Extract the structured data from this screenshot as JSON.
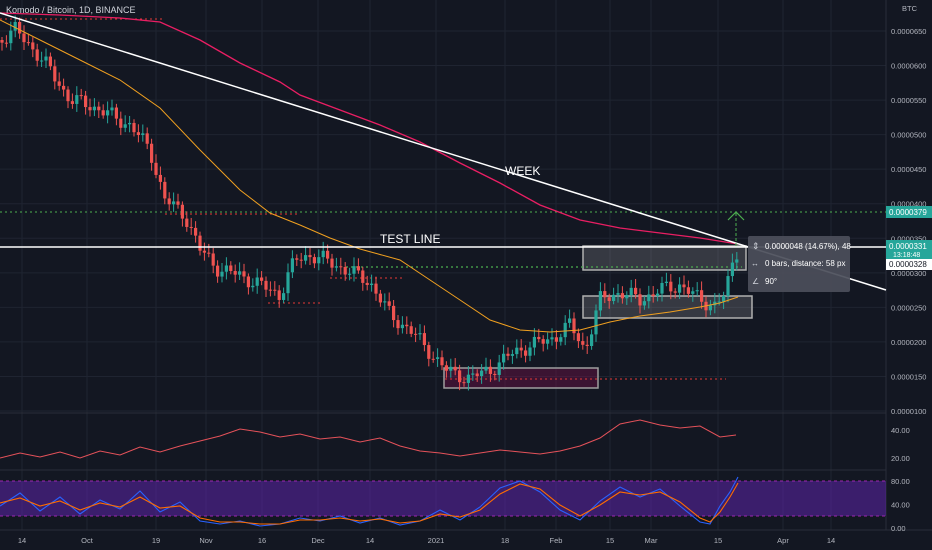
{
  "header": {
    "symbol": "Komodo / Bitcoin, 1D, BINANCE"
  },
  "price_axis": {
    "unit": "BTC",
    "ticks": [
      "0.0000650",
      "0.0000600",
      "0.0000550",
      "0.0000500",
      "0.0000450",
      "0.0000400",
      "0.0000350",
      "0.0000300",
      "0.0000250",
      "0.0000200",
      "0.0000150",
      "0.0000100"
    ],
    "tick_values": [
      6.5e-05,
      6e-05,
      5.5e-05,
      5e-05,
      4.5e-05,
      4e-05,
      3.5e-05,
      3e-05,
      2.5e-05,
      2e-05,
      1.5e-05,
      1e-05
    ],
    "badges": {
      "green": "0.0000379",
      "last": "0.0000331",
      "countdown": "13:18:48",
      "white": "0.0000328"
    }
  },
  "time_axis": {
    "labels": [
      "14",
      "Oct",
      "19",
      "Nov",
      "16",
      "Dec",
      "14",
      "2021",
      "18",
      "Feb",
      "15",
      "Mar",
      "15",
      "Apr",
      "14"
    ]
  },
  "rsi_axis": {
    "ticks": [
      "40.00",
      "20.00"
    ],
    "tick_values": [
      40,
      20
    ]
  },
  "stoch_axis": {
    "ticks": [
      "80.00",
      "40.00",
      "0.00"
    ],
    "tick_values": [
      80,
      40,
      0
    ]
  },
  "annotations": {
    "week": "WEEK",
    "test_line": "TEST LINE",
    "measure_price": "0.0000048 (14.67%), 48",
    "measure_bars": "0 bars, distance: 58 px",
    "measure_angle": "90°"
  },
  "colors": {
    "background": "#131722",
    "up": "#26a69a",
    "down": "#ef5350",
    "ma_long": "#e91e63",
    "ma_short": "#f0a020",
    "trend_line": "#ffffff",
    "green_dotted": "#4caf50",
    "red_dotted": "#e53935",
    "rsi": "#e5525a",
    "stoch_k": "#2962ff",
    "stoch_d": "#ff6d00",
    "stoch_band": "#4a1d8c"
  },
  "chart_data": {
    "type": "candlestick",
    "title": "Komodo / Bitcoin, 1D, BINANCE",
    "ylim": [
      1e-05,
      6.5e-05
    ],
    "grid": true,
    "indicators": [
      "moving average (long)",
      "moving average (short)",
      "RSI",
      "Stochastic RSI"
    ],
    "key_levels": [
      3.79e-05,
      3.31e-05,
      3.28e-05,
      3e-05
    ],
    "boxes": [
      {
        "label": "support box",
        "from": "2021-01-06",
        "to": "2021-01-31",
        "low": 1.3e-05,
        "high": 1.63e-05
      },
      {
        "label": "range box",
        "from": "2021-02-09",
        "to": "2021-03-24",
        "low": 2.3e-05,
        "high": 2.6e-05
      },
      {
        "label": "resistance box",
        "from": "2021-02-03",
        "to": "2021-03-24",
        "low": 2.98e-05,
        "high": 3.31e-05
      }
    ]
  }
}
